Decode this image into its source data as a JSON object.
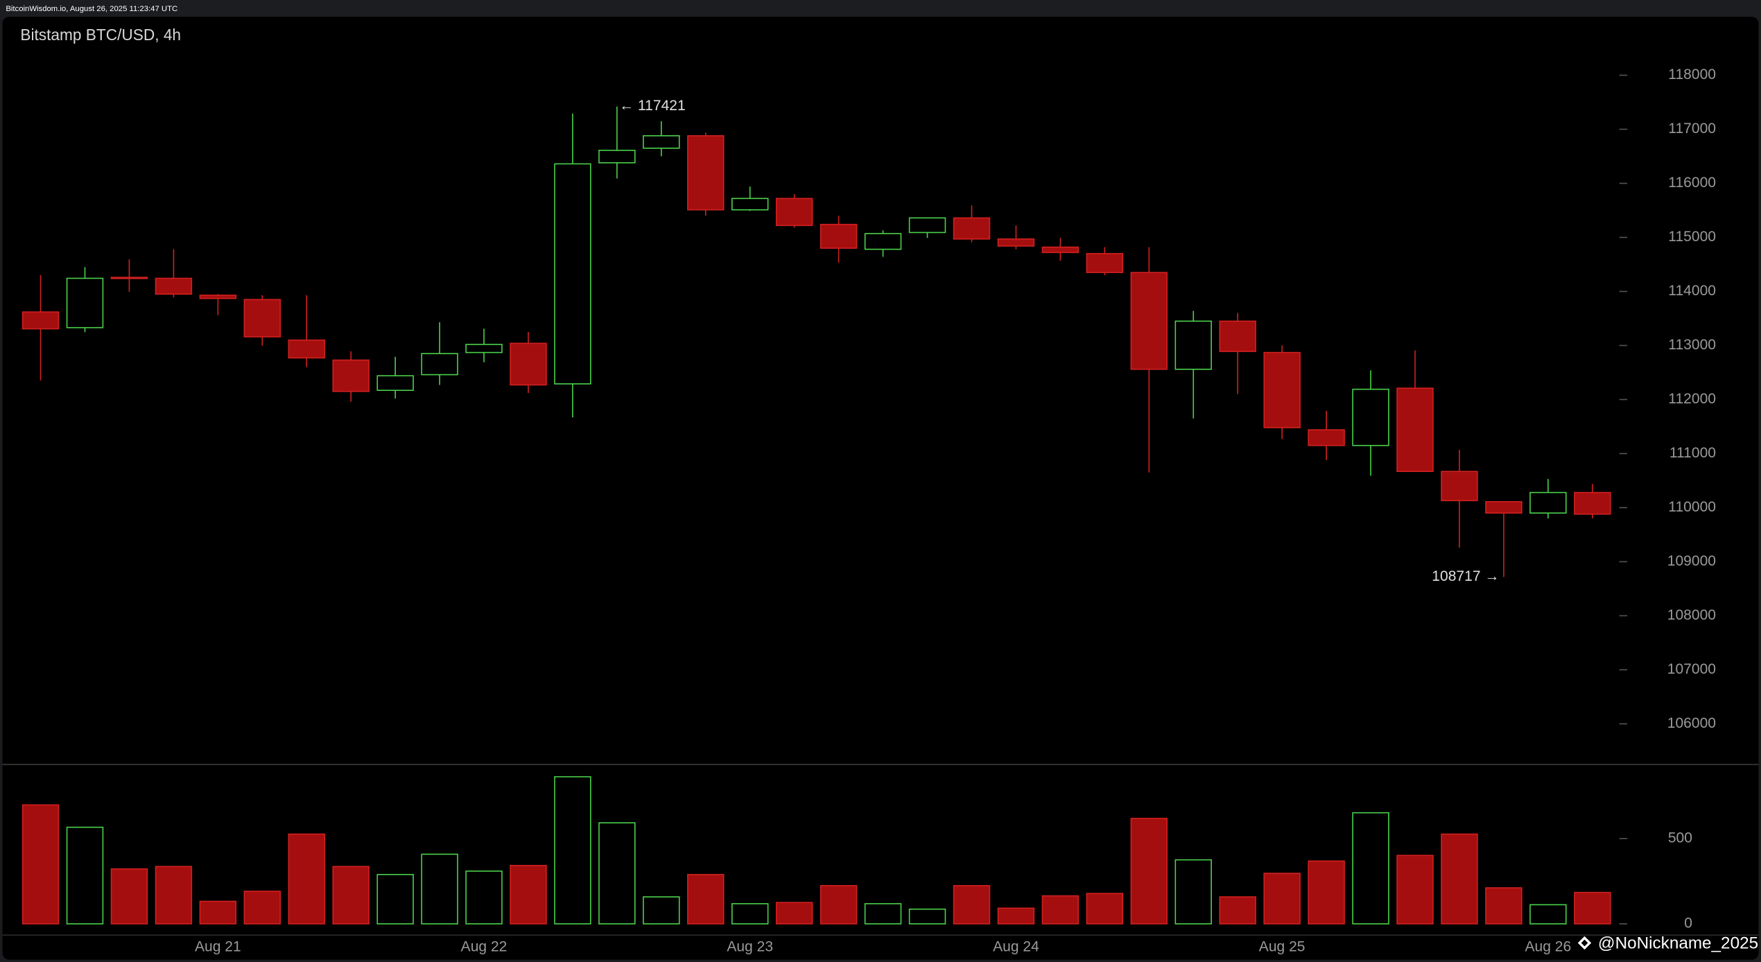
{
  "header": "BitcoinWisdom.io, August 26, 2025 11:23:47 UTC",
  "watermark": "@NoNickname_2025",
  "chart_data": {
    "type": "candlestick",
    "title": "Bitstamp BTC/USD, 4h",
    "categories": [
      null,
      null,
      null,
      null,
      "Aug 21",
      null,
      null,
      null,
      null,
      null,
      "Aug 22",
      null,
      null,
      null,
      null,
      null,
      "Aug 23",
      null,
      null,
      null,
      null,
      null,
      "Aug 24",
      null,
      null,
      null,
      null,
      null,
      "Aug 25",
      null,
      null,
      null,
      null,
      null,
      "Aug 26",
      null
    ],
    "open": [
      113620,
      113330,
      114260,
      114243,
      113930,
      113850,
      113100,
      112730,
      112170,
      112460,
      112870,
      113040,
      112290,
      116380,
      116650,
      116880,
      115510,
      115720,
      115240,
      114780,
      115090,
      115360,
      114970,
      114820,
      114700,
      114350,
      112560,
      113450,
      112870,
      111440,
      111150,
      112210,
      110670,
      110110,
      109900,
      110280
    ],
    "high": [
      114305,
      114450,
      114595,
      114782,
      113950,
      113930,
      113930,
      112890,
      112790,
      113430,
      113310,
      113250,
      117290,
      117421,
      117150,
      116940,
      115940,
      115800,
      115400,
      115130,
      115360,
      115590,
      115220,
      114990,
      114820,
      114820,
      113640,
      113600,
      113000,
      111790,
      112540,
      112910,
      111070,
      110110,
      110530,
      110440
    ],
    "low": [
      112353,
      113246,
      113993,
      113890,
      113560,
      112997,
      112600,
      111960,
      112020,
      112270,
      112690,
      112120,
      111670,
      116090,
      116500,
      115400,
      115490,
      115180,
      114530,
      114640,
      114990,
      114910,
      114780,
      114570,
      114300,
      110650,
      111650,
      112100,
      111270,
      110880,
      110590,
      110670,
      109260,
      108717,
      109800,
      109800
    ],
    "close": [
      113308,
      114243,
      114250,
      113950,
      113870,
      113160,
      112770,
      112150,
      112440,
      112850,
      113020,
      112270,
      116360,
      116610,
      116880,
      115510,
      115720,
      115220,
      114800,
      115070,
      115360,
      114970,
      114840,
      114720,
      114350,
      112560,
      113450,
      112890,
      111480,
      111150,
      112190,
      110670,
      110130,
      109900,
      110280,
      109880
    ],
    "volume": [
      697,
      566,
      322,
      336,
      132,
      191,
      526,
      336,
      289,
      408,
      309,
      342,
      862,
      592,
      158,
      289,
      118,
      125,
      224,
      118,
      86,
      224,
      92,
      164,
      178,
      618,
      375,
      158,
      296,
      368,
      651,
      401,
      526,
      211,
      112,
      184
    ],
    "up_color": "#4ad04a",
    "down_color": "#a50e0e",
    "ylim": [
      105270,
      119080
    ],
    "yticks": [
      106000,
      107000,
      108000,
      109000,
      110000,
      111000,
      112000,
      113000,
      114000,
      115000,
      116000,
      117000,
      118000
    ],
    "y2lim": [
      0,
      921
    ],
    "y2ticks": [
      0,
      500
    ],
    "annotations": [
      {
        "value": 117421,
        "label": "← 117421"
      },
      {
        "value": 108717,
        "label": "108717 →"
      }
    ]
  }
}
